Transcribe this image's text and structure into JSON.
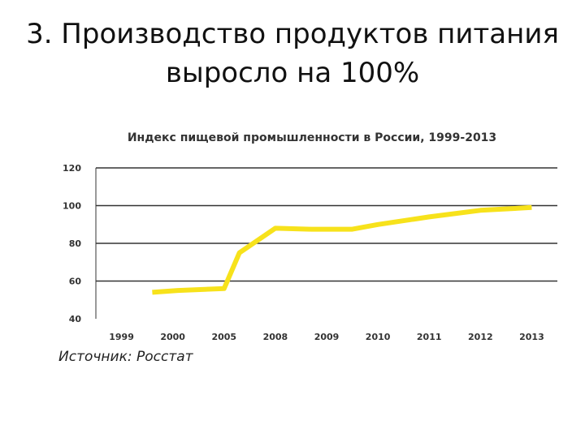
{
  "slide": {
    "title_line1": "3. Производство продуктов питания",
    "title_line2": "выросло на 100%",
    "source_note": "Источник: Росстат"
  },
  "colors": {
    "line": "#F7E21B",
    "grid": "#333333",
    "text": "#333333"
  },
  "chart_data": {
    "type": "line",
    "title": "Индекс пищевой промышленности в России, 1999-2013",
    "xlabel": "",
    "ylabel": "",
    "ylim": [
      40,
      120
    ],
    "yticks": [
      120,
      100,
      80,
      60,
      40
    ],
    "grid": true,
    "categories": [
      "1999",
      "2000",
      "2005",
      "2008",
      "2009",
      "2010",
      "2011",
      "2012",
      "2013"
    ],
    "series": [
      {
        "x": [
          1999.6,
          2000.5,
          2005,
          2005.9,
          2008,
          2008.7,
          2009.5,
          2010,
          2011,
          2012,
          2013
        ],
        "values": [
          54,
          55,
          56,
          75,
          88,
          87.5,
          87.5,
          90,
          94,
          97.5,
          99
        ]
      }
    ]
  }
}
